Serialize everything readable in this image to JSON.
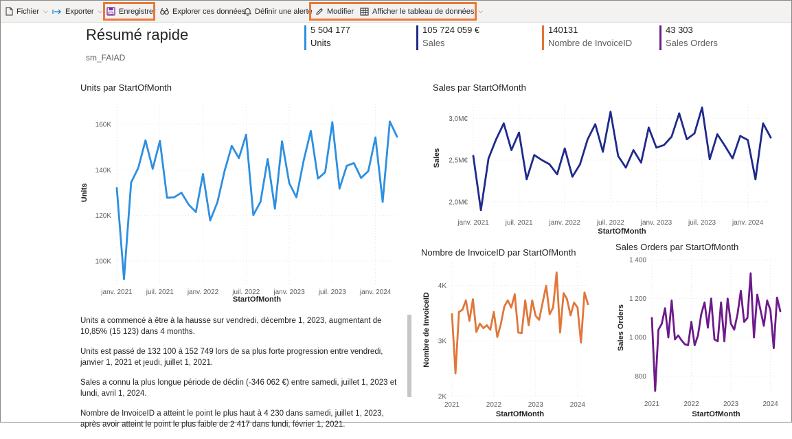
{
  "toolbar": {
    "file": "Fichier",
    "export": "Exporter",
    "save": "Enregistrer",
    "explore": "Explorer ces données",
    "alert": "Définir une alerte",
    "edit": "Modifier",
    "show_table": "Afficher le tableau de données"
  },
  "header": {
    "title": "Résumé rapide",
    "subtitle": "sm_FAIAD"
  },
  "kpis": [
    {
      "value": "5 504 177",
      "label": "Units",
      "color": "#2d8fe0"
    },
    {
      "value": "105 724 059 €",
      "label": "Sales",
      "color": "#1f2a8c"
    },
    {
      "value": "140131",
      "label": "Nombre de InvoiceID",
      "color": "#e0773a"
    },
    {
      "value": "43 303",
      "label": "Sales Orders",
      "color": "#6d1a8a"
    }
  ],
  "chart_data": [
    {
      "type": "line",
      "title": "Units par StartOfMonth",
      "xlabel": "StartOfMonth",
      "ylabel": "Units",
      "color": "#2d8fe0",
      "x_start": "2021-01",
      "x_ticks": [
        "janv. 2021",
        "juil. 2021",
        "janv. 2022",
        "juil. 2022",
        "janv. 2023",
        "juil. 2023",
        "janv. 2024"
      ],
      "y_ticks": [
        "100K",
        "120K",
        "140K",
        "160K"
      ],
      "ylim": [
        90000,
        170000
      ],
      "values": [
        132100,
        92000,
        134500,
        141000,
        153000,
        140500,
        152749,
        127800,
        128000,
        130000,
        124800,
        121500,
        138200,
        117800,
        125800,
        139500,
        150600,
        145200,
        155500,
        120200,
        126000,
        144800,
        123000,
        152600,
        134200,
        128000,
        144000,
        157200,
        136200,
        139000,
        161000,
        131800,
        141800,
        143000,
        136500,
        139500,
        154300,
        126000,
        161300,
        154600
      ]
    },
    {
      "type": "line",
      "title": "Sales par StartOfMonth",
      "xlabel": "StartOfMonth",
      "ylabel": "Sales",
      "color": "#1f2a8c",
      "x_start": "2021-01",
      "x_ticks": [
        "janv. 2021",
        "juil. 2021",
        "janv. 2022",
        "juil. 2022",
        "janv. 2023",
        "juil. 2023",
        "janv. 2024"
      ],
      "y_ticks": [
        "2,0M€",
        "2,5M€",
        "3,0M€"
      ],
      "ylim": [
        1.85,
        3.2
      ],
      "values": [
        2.55,
        1.9,
        2.52,
        2.75,
        2.94,
        2.62,
        2.83,
        2.27,
        2.56,
        2.5,
        2.45,
        2.33,
        2.64,
        2.3,
        2.45,
        2.75,
        2.93,
        2.6,
        3.08,
        2.55,
        2.41,
        2.62,
        2.47,
        2.89,
        2.65,
        2.68,
        2.78,
        3.06,
        2.75,
        2.82,
        3.13,
        2.51,
        2.81,
        2.67,
        2.52,
        2.79,
        2.74,
        2.27,
        2.94,
        2.77
      ]
    },
    {
      "type": "line",
      "title": "Nombre de InvoiceID par StartOfMonth",
      "xlabel": "StartOfMonth",
      "ylabel": "Nombre de InvoiceID",
      "color": "#e0773a",
      "x_start": "2021-01",
      "x_ticks": [
        "2021",
        "2022",
        "2023",
        "2024"
      ],
      "y_ticks": [
        "2K",
        "3K",
        "4K"
      ],
      "ylim": [
        2000,
        4400
      ],
      "values": [
        3480,
        2417,
        3520,
        3560,
        3730,
        3360,
        3750,
        3160,
        3310,
        3230,
        3280,
        3200,
        3520,
        3070,
        3300,
        3620,
        3730,
        3600,
        3840,
        3150,
        3140,
        3730,
        3280,
        3730,
        3450,
        3380,
        3690,
        3990,
        3480,
        3600,
        4230,
        3150,
        3860,
        3750,
        3460,
        3690,
        3600,
        2970,
        3870,
        3660
      ]
    },
    {
      "type": "line",
      "title": "Sales Orders par StartOfMonth",
      "xlabel": "StartOfMonth",
      "ylabel": "Sales Orders",
      "color": "#6d1a8a",
      "x_start": "2021-01",
      "x_ticks": [
        "2021",
        "2022",
        "2023",
        "2024"
      ],
      "y_ticks": [
        "800",
        "1 000",
        "1 200",
        "1 400"
      ],
      "ylim": [
        700,
        1400
      ],
      "values": [
        1100,
        725,
        1040,
        1070,
        1150,
        1000,
        1190,
        990,
        1010,
        985,
        965,
        960,
        1080,
        960,
        1010,
        1120,
        1180,
        1050,
        1200,
        990,
        980,
        1180,
        980,
        1200,
        1070,
        1040,
        1120,
        1240,
        1080,
        1100,
        1330,
        1000,
        1220,
        1140,
        1060,
        1190,
        1140,
        945,
        1205,
        1135
      ]
    }
  ],
  "narrative": [
    "Units a commencé à être à la hausse sur vendredi, décembre 1, 2023, augmentant de 10,85% (15 123) dans 4 months.",
    "Units est passé de 132 100 à 152 749 lors de sa plus forte progression entre vendredi, janvier 1, 2021 et jeudi, juillet 1, 2021.",
    "Sales a connu la plus longue période de déclin (-346 062 €) entre samedi, juillet 1, 2023 et lundi, avril 1, 2024.",
    "Nombre de InvoiceID a atteint le point le plus haut à 4 230 dans samedi, juillet 1, 2023, après avoir atteint le point le plus faible de 2 417 dans lundi, février 1, 2021."
  ]
}
